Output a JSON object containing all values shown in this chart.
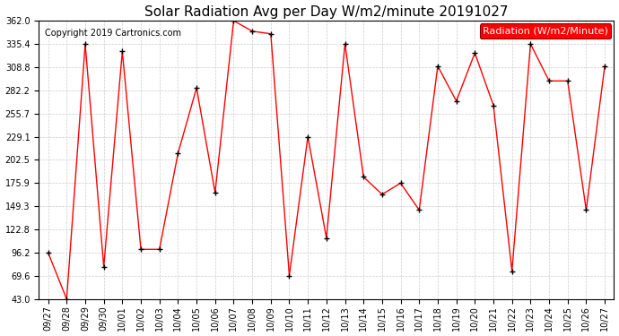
{
  "title": "Solar Radiation Avg per Day W/m2/minute 20191027",
  "copyright_text": "Copyright 2019 Cartronics.com",
  "legend_label": "Radiation (W/m2/Minute)",
  "background_color": "#ffffff",
  "grid_color": "#cccccc",
  "line_color": "red",
  "marker_color": "black",
  "ylim": [
    43.0,
    362.0
  ],
  "yticks": [
    43.0,
    69.6,
    96.2,
    122.8,
    149.3,
    175.9,
    202.5,
    229.1,
    255.7,
    282.2,
    308.8,
    335.4,
    362.0
  ],
  "dates": [
    "09/27",
    "09/28",
    "09/29",
    "09/30",
    "10/01",
    "10/02",
    "10/03",
    "10/04",
    "10/05",
    "10/06",
    "10/07",
    "10/08",
    "10/09",
    "10/10",
    "10/11",
    "10/12",
    "10/13",
    "10/14",
    "10/15",
    "10/16",
    "10/17",
    "10/18",
    "10/19",
    "10/20",
    "10/21",
    "10/22",
    "10/23",
    "10/24",
    "10/25",
    "10/26",
    "10/27"
  ],
  "values": [
    96.2,
    43.0,
    335.4,
    80.0,
    327.0,
    100.0,
    100.0,
    210.0,
    285.0,
    165.0,
    362.0,
    350.0,
    347.0,
    70.0,
    229.1,
    113.0,
    335.4,
    183.0,
    163.0,
    175.9,
    145.0,
    310.0,
    270.0,
    325.0,
    265.0,
    75.0,
    335.4,
    293.0,
    293.0,
    145.0,
    310.0
  ],
  "title_fontsize": 11,
  "tick_fontsize": 7,
  "legend_fontsize": 8,
  "copyright_fontsize": 7
}
